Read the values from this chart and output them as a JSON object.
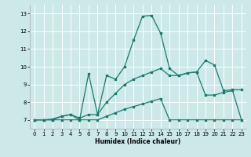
{
  "xlabel": "Humidex (Indice chaleur)",
  "background_color": "#cce8e8",
  "grid_color": "#ffffff",
  "line_color": "#1a7a6e",
  "xlim": [
    -0.5,
    23.5
  ],
  "ylim": [
    6.5,
    13.5
  ],
  "yticks": [
    7,
    8,
    9,
    10,
    11,
    12,
    13
  ],
  "xticks": [
    0,
    1,
    2,
    3,
    4,
    5,
    6,
    7,
    8,
    9,
    10,
    11,
    12,
    13,
    14,
    15,
    16,
    17,
    18,
    19,
    20,
    21,
    22,
    23
  ],
  "line1_x": [
    0,
    1,
    2,
    3,
    4,
    5,
    6,
    7,
    8,
    9,
    10,
    11,
    12,
    13,
    14,
    15,
    16,
    17,
    18,
    19,
    20,
    21,
    22,
    23
  ],
  "line1_y": [
    7,
    7,
    7,
    7.2,
    7.3,
    7.0,
    9.6,
    7.3,
    9.5,
    9.3,
    10.0,
    11.5,
    12.85,
    12.9,
    11.9,
    9.9,
    9.5,
    9.65,
    9.7,
    10.35,
    10.1,
    8.65,
    8.7,
    8.7
  ],
  "line2_x": [
    0,
    1,
    2,
    3,
    4,
    5,
    6,
    7,
    8,
    9,
    10,
    11,
    12,
    13,
    14,
    15,
    16,
    17,
    18,
    19,
    20,
    21,
    22,
    23
  ],
  "line2_y": [
    7,
    7,
    7.05,
    7.2,
    7.3,
    7.1,
    7.3,
    7.3,
    8.0,
    8.5,
    9.0,
    9.3,
    9.5,
    9.7,
    9.9,
    9.5,
    9.5,
    9.65,
    9.7,
    8.4,
    8.4,
    8.55,
    8.65,
    7.0
  ],
  "line3_x": [
    0,
    1,
    2,
    3,
    4,
    5,
    6,
    7,
    8,
    9,
    10,
    11,
    12,
    13,
    14,
    15,
    16,
    17,
    18,
    19,
    20,
    21,
    22,
    23
  ],
  "line3_y": [
    7,
    7,
    7,
    7,
    7,
    7,
    7,
    7,
    7.2,
    7.4,
    7.6,
    7.75,
    7.9,
    8.05,
    8.2,
    7.0,
    7.0,
    7.0,
    7.0,
    7.0,
    7.0,
    7.0,
    7.0,
    7.0
  ]
}
